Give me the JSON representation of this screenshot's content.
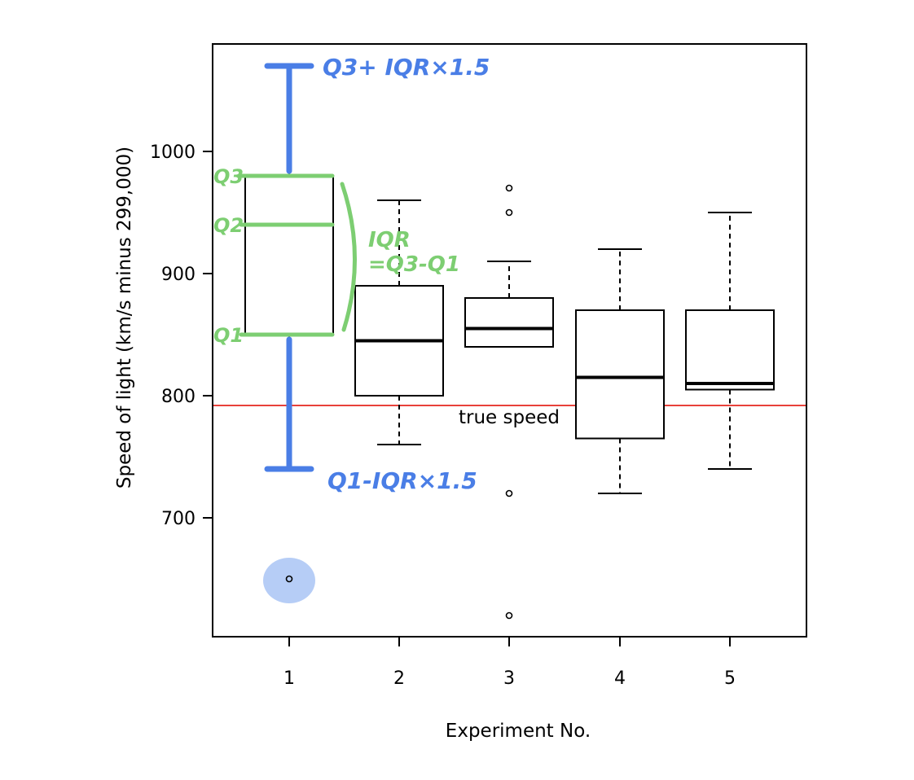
{
  "chart_data": {
    "type": "box",
    "xlabel": "Experiment No.",
    "ylabel": "Speed of light (km/s minus 299,000)",
    "categories": [
      "1",
      "2",
      "3",
      "4",
      "5"
    ],
    "yticks": [
      700,
      800,
      900,
      1000
    ],
    "ylim": [
      603,
      1090
    ],
    "boxes": [
      {
        "category": "1",
        "whisker_low": 740,
        "q1": 850,
        "median": 940,
        "q3": 980,
        "whisker_high": 1070,
        "outliers": [
          650
        ]
      },
      {
        "category": "2",
        "whisker_low": 760,
        "q1": 800,
        "median": 845,
        "q3": 890,
        "whisker_high": 960,
        "outliers": []
      },
      {
        "category": "3",
        "whisker_low": 840,
        "q1": 840,
        "median": 855,
        "q3": 880,
        "whisker_high": 910,
        "outliers": [
          620,
          720,
          950,
          970
        ]
      },
      {
        "category": "4",
        "whisker_low": 720,
        "q1": 765,
        "median": 815,
        "q3": 870,
        "whisker_high": 920,
        "outliers": []
      },
      {
        "category": "5",
        "whisker_low": 740,
        "q1": 805,
        "median": 810,
        "q3": 870,
        "whisker_high": 950,
        "outliers": []
      }
    ],
    "reference_line": {
      "y": 792,
      "label": "true speed",
      "color": "#e8413a"
    },
    "grid": false,
    "annotations": {
      "upper_whisker": "Q3+ IQR×1.5",
      "lower_whisker": "Q1-IQR×1.5",
      "q3": "Q3",
      "q2": "Q2",
      "q1": "Q1",
      "iqr_line1": "IQR",
      "iqr_line2": "=Q3-Q1"
    },
    "colors": {
      "blue_annotation": "#4a7ee6",
      "green_annotation": "#7dce72",
      "outlier_highlight": "#a9c4f5"
    }
  }
}
